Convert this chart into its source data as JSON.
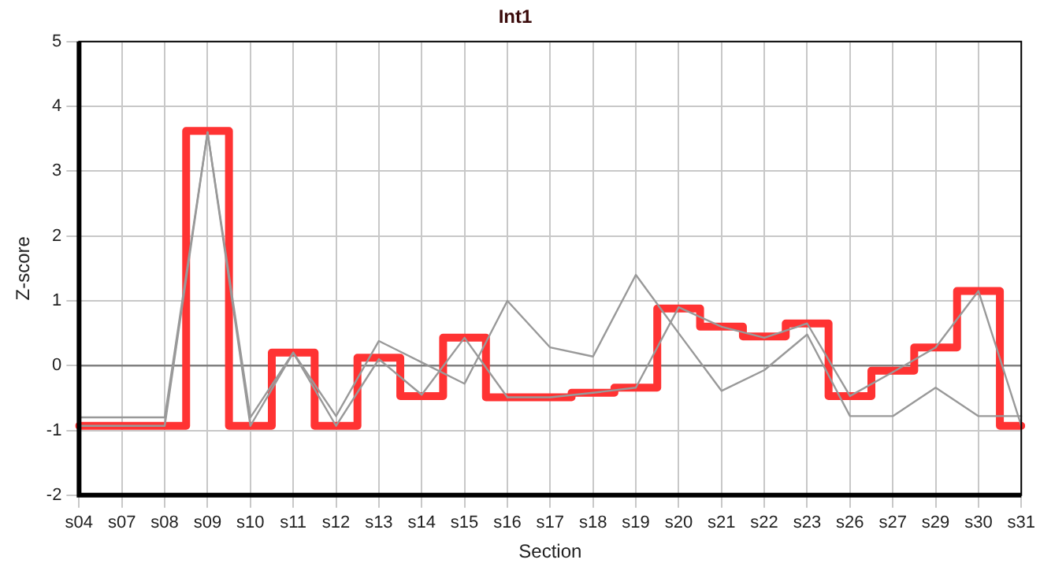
{
  "chart_data": {
    "type": "line",
    "title": "Int1",
    "xlabel": "Section",
    "ylabel": "Z-score",
    "categories": [
      "s04",
      "s07",
      "s08",
      "s09",
      "s10",
      "s11",
      "s12",
      "s13",
      "s14",
      "s15",
      "s16",
      "s17",
      "s18",
      "s19",
      "s20",
      "s21",
      "s22",
      "s23",
      "s26",
      "s27",
      "s29",
      "s30",
      "s31"
    ],
    "series": [
      {
        "color": "#999999",
        "values": [
          -0.8,
          -0.8,
          -0.8,
          3.6,
          -0.8,
          0.2,
          -0.78,
          0.38,
          0.05,
          -0.28,
          1.0,
          0.28,
          0.14,
          1.4,
          0.5,
          -0.39,
          -0.07,
          0.48,
          -0.78,
          -0.78,
          -0.34,
          -0.78,
          -0.78
        ]
      },
      {
        "color": "#999999",
        "values": [
          -0.93,
          -0.93,
          -0.93,
          3.6,
          -0.93,
          0.2,
          -0.93,
          0.1,
          -0.45,
          0.43,
          -0.49,
          -0.49,
          -0.42,
          -0.34,
          0.9,
          0.6,
          0.43,
          0.65,
          -0.47,
          -0.1,
          0.28,
          1.15,
          -0.93
        ]
      },
      {
        "type": "step",
        "color": "#ff3333",
        "values": [
          -0.93,
          -0.93,
          -0.93,
          3.62,
          -0.93,
          0.2,
          -0.93,
          0.12,
          -0.47,
          0.43,
          -0.49,
          -0.49,
          -0.42,
          -0.34,
          0.88,
          0.6,
          0.45,
          0.65,
          -0.47,
          -0.08,
          0.28,
          1.15,
          -0.93
        ]
      }
    ],
    "ylim": [
      -2,
      5
    ],
    "yticks": [
      -2,
      -1,
      0,
      1,
      2,
      3,
      4,
      5
    ],
    "grid": true,
    "legend": false,
    "marker": "none",
    "ref_lines": [
      {
        "axis": "y",
        "value": 0,
        "color": "#808080"
      }
    ]
  }
}
